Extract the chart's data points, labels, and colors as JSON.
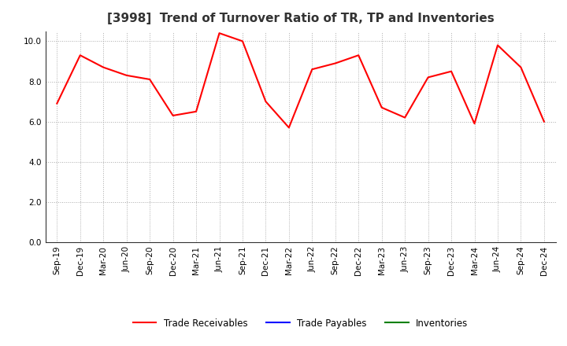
{
  "title": "[3998]  Trend of Turnover Ratio of TR, TP and Inventories",
  "x_labels": [
    "Sep-19",
    "Dec-19",
    "Mar-20",
    "Jun-20",
    "Sep-20",
    "Dec-20",
    "Mar-21",
    "Jun-21",
    "Sep-21",
    "Dec-21",
    "Mar-22",
    "Jun-22",
    "Sep-22",
    "Dec-22",
    "Mar-23",
    "Jun-23",
    "Sep-23",
    "Dec-23",
    "Mar-24",
    "Jun-24",
    "Sep-24",
    "Dec-24"
  ],
  "trade_receivables": [
    6.9,
    9.3,
    8.7,
    8.3,
    8.1,
    6.3,
    6.5,
    10.4,
    10.0,
    7.0,
    5.7,
    8.6,
    8.9,
    9.3,
    6.7,
    6.2,
    8.2,
    8.5,
    5.9,
    9.8,
    8.7,
    6.0
  ],
  "trade_payables": [],
  "inventories": [],
  "tr_color": "#FF0000",
  "tp_color": "#0000FF",
  "inv_color": "#008000",
  "ylim": [
    0.0,
    10.5
  ],
  "yticks": [
    0.0,
    2.0,
    4.0,
    6.0,
    8.0,
    10.0
  ],
  "background_color": "#FFFFFF",
  "grid_color": "#AAAAAA",
  "title_fontsize": 11,
  "tick_fontsize": 7.5,
  "legend_labels": [
    "Trade Receivables",
    "Trade Payables",
    "Inventories"
  ],
  "linewidth": 1.5
}
